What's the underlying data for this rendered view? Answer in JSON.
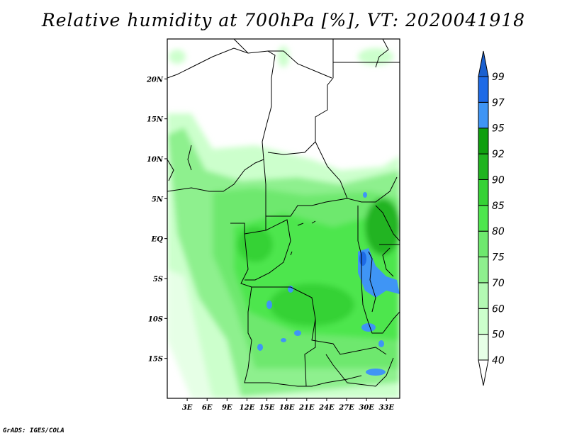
{
  "title": "Relative humidity at 700hPa [%], VT: 2020041918",
  "footer": "GrADS: IGES/COLA",
  "map": {
    "variable": "Relative humidity",
    "level_hpa": 700,
    "units": "%",
    "valid_time": "2020041918",
    "lon_range": [
      0,
      35
    ],
    "lat_range": [
      -20,
      25
    ],
    "lat_ticks": [
      {
        "label": "20N",
        "value": 20
      },
      {
        "label": "15N",
        "value": 15
      },
      {
        "label": "10N",
        "value": 10
      },
      {
        "label": "5N",
        "value": 5
      },
      {
        "label": "EQ",
        "value": 0
      },
      {
        "label": "5S",
        "value": -5
      },
      {
        "label": "10S",
        "value": -10
      },
      {
        "label": "15S",
        "value": -15
      }
    ],
    "lon_ticks": [
      {
        "label": "3E",
        "value": 3
      },
      {
        "label": "6E",
        "value": 6
      },
      {
        "label": "9E",
        "value": 9
      },
      {
        "label": "12E",
        "value": 12
      },
      {
        "label": "15E",
        "value": 15
      },
      {
        "label": "18E",
        "value": 18
      },
      {
        "label": "21E",
        "value": 21
      },
      {
        "label": "24E",
        "value": 24
      },
      {
        "label": "27E",
        "value": 27
      },
      {
        "label": "30E",
        "value": 30
      },
      {
        "label": "33E",
        "value": 33
      }
    ]
  },
  "colorbar": {
    "levels": [
      "40",
      "50",
      "60",
      "70",
      "75",
      "80",
      "85",
      "90",
      "92",
      "95",
      "97",
      "99"
    ],
    "colors": [
      "#e6ffe6",
      "#ccffcc",
      "#b3f9b3",
      "#8ef08e",
      "#6ee86e",
      "#4ee64e",
      "#36d236",
      "#20b420",
      "#0f9f0f",
      "#3f95f5",
      "#1e6ae6",
      "#1550c8"
    ],
    "below_color": "#ffffff",
    "above_color": "#1a60d0"
  }
}
